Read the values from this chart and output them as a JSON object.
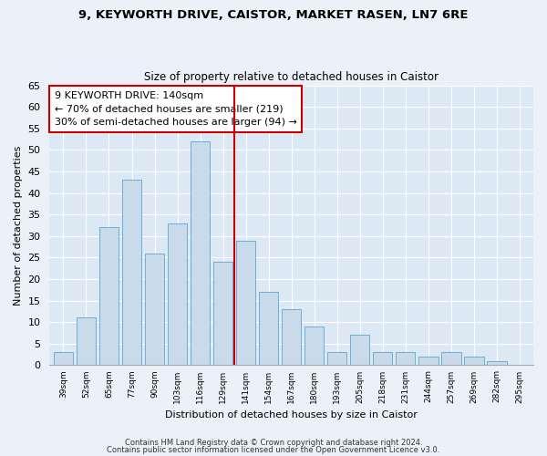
{
  "title_line1": "9, KEYWORTH DRIVE, CAISTOR, MARKET RASEN, LN7 6RE",
  "title_line2": "Size of property relative to detached houses in Caistor",
  "xlabel": "Distribution of detached houses by size in Caistor",
  "ylabel": "Number of detached properties",
  "categories": [
    "39sqm",
    "52sqm",
    "65sqm",
    "77sqm",
    "90sqm",
    "103sqm",
    "116sqm",
    "129sqm",
    "141sqm",
    "154sqm",
    "167sqm",
    "180sqm",
    "193sqm",
    "205sqm",
    "218sqm",
    "231sqm",
    "244sqm",
    "257sqm",
    "269sqm",
    "282sqm",
    "295sqm"
  ],
  "values": [
    3,
    11,
    32,
    43,
    26,
    33,
    52,
    24,
    29,
    17,
    13,
    9,
    3,
    7,
    3,
    3,
    2,
    3,
    2,
    1,
    0
  ],
  "bar_color": "#c9daea",
  "bar_edge_color": "#6baed6",
  "vline_color": "#cc0000",
  "annotation_text": "9 KEYWORTH DRIVE: 140sqm\n← 70% of detached houses are smaller (219)\n30% of semi-detached houses are larger (94) →",
  "annotation_box_color": "#ffffff",
  "annotation_box_edge": "#cc0000",
  "ylim": [
    0,
    65
  ],
  "yticks": [
    0,
    5,
    10,
    15,
    20,
    25,
    30,
    35,
    40,
    45,
    50,
    55,
    60,
    65
  ],
  "background_color": "#dce9f5",
  "fig_background_color": "#eaf1f8",
  "footer_line1": "Contains HM Land Registry data © Crown copyright and database right 2024.",
  "footer_line2": "Contains public sector information licensed under the Open Government Licence v3.0."
}
